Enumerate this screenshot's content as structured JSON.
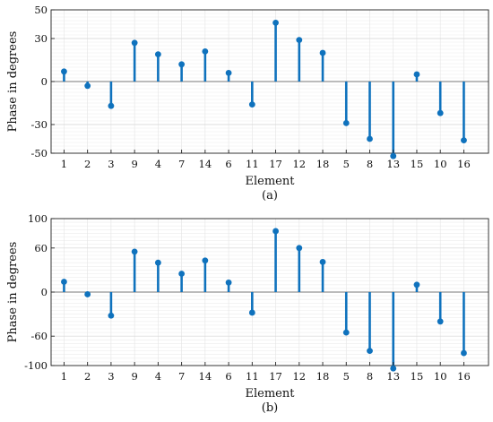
{
  "chart_data": [
    {
      "type": "stem",
      "caption": "(a)",
      "xlabel": "Element",
      "ylabel": "Phase in degrees",
      "categories": [
        "1",
        "2",
        "3",
        "9",
        "4",
        "7",
        "14",
        "6",
        "11",
        "17",
        "12",
        "18",
        "5",
        "8",
        "13",
        "15",
        "10",
        "16"
      ],
      "values": [
        7,
        -3,
        -17,
        27,
        19,
        12,
        21,
        6,
        -16,
        41,
        29,
        20,
        -29,
        -40,
        -52,
        5,
        -22,
        -41
      ],
      "ylim": [
        -50,
        50
      ],
      "yticks": [
        50,
        30,
        0,
        -30,
        -50
      ],
      "color": "#0f72bd",
      "grid": true
    },
    {
      "type": "stem",
      "caption": "(b)",
      "xlabel": "Element",
      "ylabel": "Phase in degrees",
      "categories": [
        "1",
        "2",
        "3",
        "9",
        "4",
        "7",
        "14",
        "6",
        "11",
        "17",
        "12",
        "18",
        "5",
        "8",
        "13",
        "15",
        "10",
        "16"
      ],
      "values": [
        14,
        -3,
        -32,
        55,
        40,
        25,
        43,
        13,
        -28,
        83,
        60,
        41,
        -55,
        -80,
        -104,
        10,
        -40,
        -83
      ],
      "ylim": [
        -100,
        100
      ],
      "yticks": [
        100,
        60,
        0,
        -60,
        -100
      ],
      "color": "#0f72bd",
      "grid": true
    }
  ]
}
